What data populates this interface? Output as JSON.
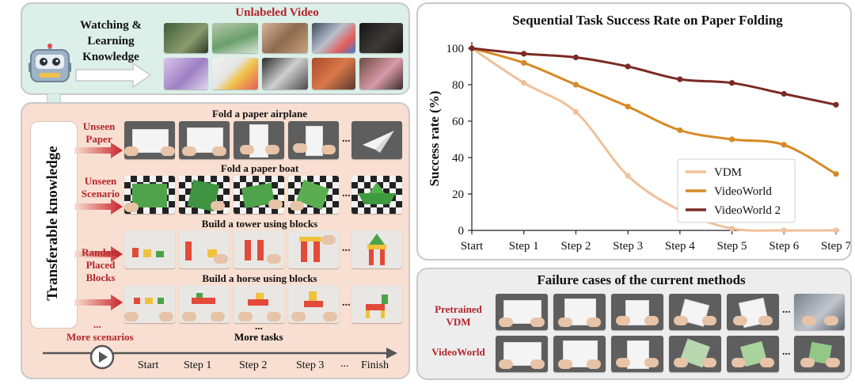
{
  "top_panel": {
    "watch_text": "Watching & Learning Knowledge",
    "unlabeled_title": "Unlabeled Video"
  },
  "left_panel": {
    "vertical_label": "Transferable knowledge",
    "scenarios": [
      {
        "label": "Unseen Paper",
        "task": "Fold a paper airplane"
      },
      {
        "label": "Unseen Scenario",
        "task": "Fold a paper boat"
      },
      {
        "label": "Random Placed Blocks",
        "task": "Build a tower using blocks"
      },
      {
        "label": "",
        "task": "Build a horse using blocks"
      }
    ],
    "more_dots": "...",
    "more_scenarios": "More scenarios",
    "more_tasks_dots": "...",
    "more_tasks": "More tasks",
    "row_dots": "...",
    "timeline": [
      "Start",
      "Step 1",
      "Step 2",
      "Step 3",
      "...",
      "Finish"
    ]
  },
  "chart_data": {
    "type": "line",
    "title": "Sequential Task Success Rate on Paper Folding",
    "xlabel": "",
    "ylabel": "Success rate (%)",
    "categories": [
      "Start",
      "Step 1",
      "Step 2",
      "Step 3",
      "Step 4",
      "Step 5",
      "Step 6",
      "Step 7"
    ],
    "ylim": [
      0,
      100
    ],
    "yticks": [
      0,
      20,
      40,
      60,
      80,
      100
    ],
    "legend_position": "center-right",
    "series": [
      {
        "name": "VDM",
        "color": "#f0c09a",
        "values": [
          100,
          81,
          65,
          30,
          11,
          1,
          0,
          0
        ]
      },
      {
        "name": "VideoWorld",
        "color": "#d68a25",
        "values": [
          100,
          92,
          80,
          68,
          55,
          50,
          47,
          31
        ]
      },
      {
        "name": "VideoWorld 2",
        "color": "#7b2a24",
        "values": [
          100,
          97,
          95,
          90,
          83,
          81,
          75,
          69
        ]
      }
    ]
  },
  "failure_panel": {
    "title": "Failure cases of the current methods",
    "rows": [
      {
        "label": "Pretrained VDM"
      },
      {
        "label": "VideoWorld"
      }
    ],
    "dots": "..."
  },
  "colors": {
    "top_panel_bg": "#dcefe8",
    "left_panel_bg": "#f8dfd1",
    "accent_red": "#b3252b",
    "failure_panel_bg": "#ededed"
  }
}
